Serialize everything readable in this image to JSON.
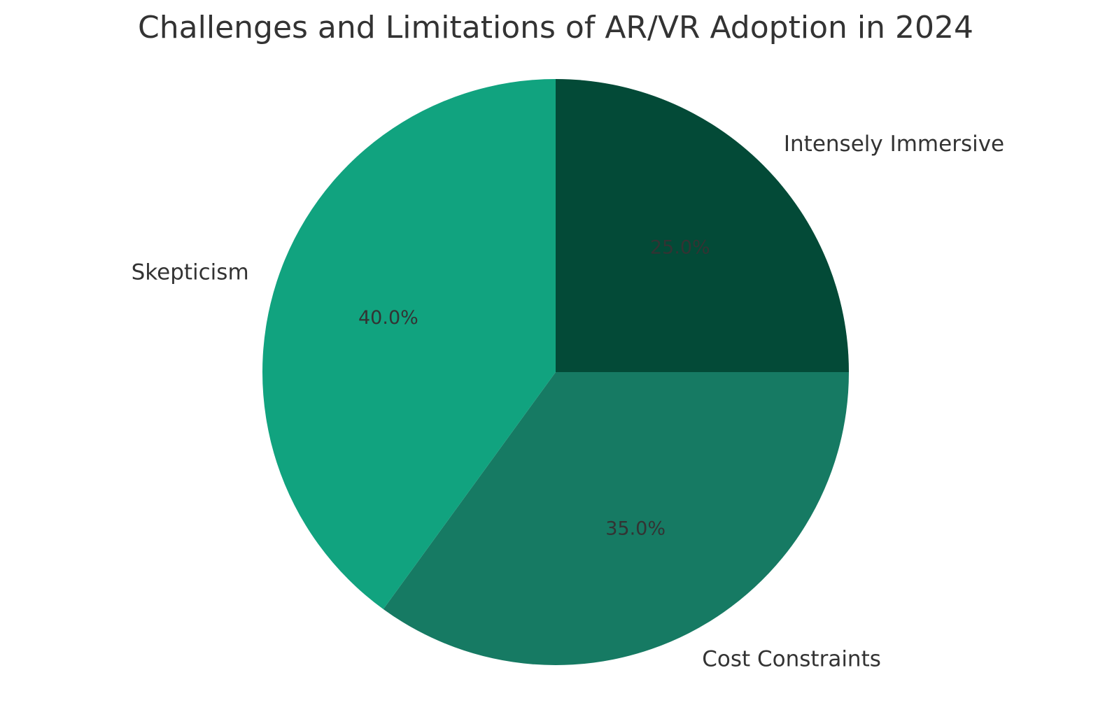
{
  "chart_data": {
    "type": "pie",
    "title": "Challenges and Limitations of AR/VR Adoption in 2024",
    "categories": [
      "Intensely Immersive",
      "Cost Constraints",
      "Skepticism"
    ],
    "values": [
      25.0,
      35.0,
      40.0
    ],
    "percent_labels": [
      "25.0%",
      "35.0%",
      "40.0%"
    ],
    "colors": [
      "#034a37",
      "#167a63",
      "#11a37f"
    ],
    "start_angle_deg": 90,
    "direction": "clockwise",
    "legend": "none"
  }
}
